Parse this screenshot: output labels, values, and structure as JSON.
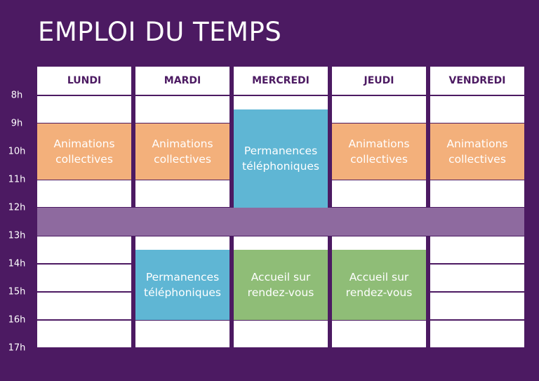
{
  "title": "EMPLOI DU TEMPS",
  "range": [
    8,
    17
  ],
  "hours": [
    {
      "value": 8,
      "label": "8h"
    },
    {
      "value": 9,
      "label": "9h"
    },
    {
      "value": 10,
      "label": "10h"
    },
    {
      "value": 11,
      "label": "11h"
    },
    {
      "value": 12,
      "label": "12h"
    },
    {
      "value": 13,
      "label": "13h"
    },
    {
      "value": 14,
      "label": "14h"
    },
    {
      "value": 15,
      "label": "15h"
    },
    {
      "value": 16,
      "label": "16h"
    },
    {
      "value": 17,
      "label": "17h"
    }
  ],
  "break": {
    "start": 12,
    "end": 13,
    "color": "#8e6a9f"
  },
  "days": [
    {
      "name": "LUNDI",
      "events": [
        {
          "label": "Animations collectives",
          "start": 9,
          "end": 11,
          "color": "#f3b07b"
        }
      ]
    },
    {
      "name": "MARDI",
      "events": [
        {
          "label": "Animations collectives",
          "start": 9,
          "end": 11,
          "color": "#f3b07b"
        },
        {
          "label": "Permanences téléphoniques",
          "start": 13.5,
          "end": 16,
          "color": "#5fb6d4"
        }
      ]
    },
    {
      "name": "MERCREDI",
      "events": [
        {
          "label": "Permanences téléphoniques",
          "start": 8.5,
          "end": 12,
          "color": "#5fb6d4"
        },
        {
          "label": "Accueil sur rendez-vous",
          "start": 13.5,
          "end": 16,
          "color": "#8fbd77"
        }
      ]
    },
    {
      "name": "JEUDI",
      "events": [
        {
          "label": "Animations collectives",
          "start": 9,
          "end": 11,
          "color": "#f3b07b"
        },
        {
          "label": "Accueil sur rendez-vous",
          "start": 13.5,
          "end": 16,
          "color": "#8fbd77"
        }
      ]
    },
    {
      "name": "VENDREDI",
      "events": [
        {
          "label": "Animations collectives",
          "start": 9,
          "end": 11,
          "color": "#f3b07b"
        }
      ]
    }
  ]
}
